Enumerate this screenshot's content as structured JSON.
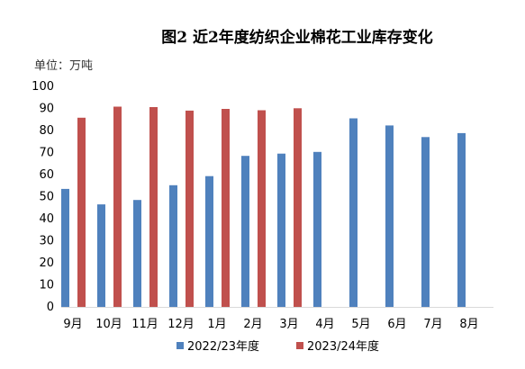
{
  "chart_data": {
    "type": "bar",
    "title": "图2 近2年度纺织企业棉花工业库存变化",
    "unit_label": "单位：万吨",
    "categories": [
      "9月",
      "10月",
      "11月",
      "12月",
      "1月",
      "2月",
      "3月",
      "4月",
      "5月",
      "6月",
      "7月",
      "8月"
    ],
    "series": [
      {
        "name": "2022/23年度",
        "color": "#4f81bd",
        "values": [
          53.5,
          46.5,
          48.5,
          55.2,
          59.3,
          68.5,
          69.5,
          70.3,
          85.5,
          82.3,
          77.0,
          78.8
        ]
      },
      {
        "name": "2023/24年度",
        "color": "#c0504d",
        "values": [
          85.8,
          90.8,
          90.6,
          89.0,
          89.8,
          89.2,
          90.1,
          null,
          null,
          null,
          null,
          null
        ]
      }
    ],
    "ylim": [
      0,
      100
    ],
    "y_ticks": [
      0,
      10,
      20,
      30,
      40,
      50,
      60,
      70,
      80,
      90,
      100
    ],
    "grid": false,
    "legend_position": "bottom"
  }
}
